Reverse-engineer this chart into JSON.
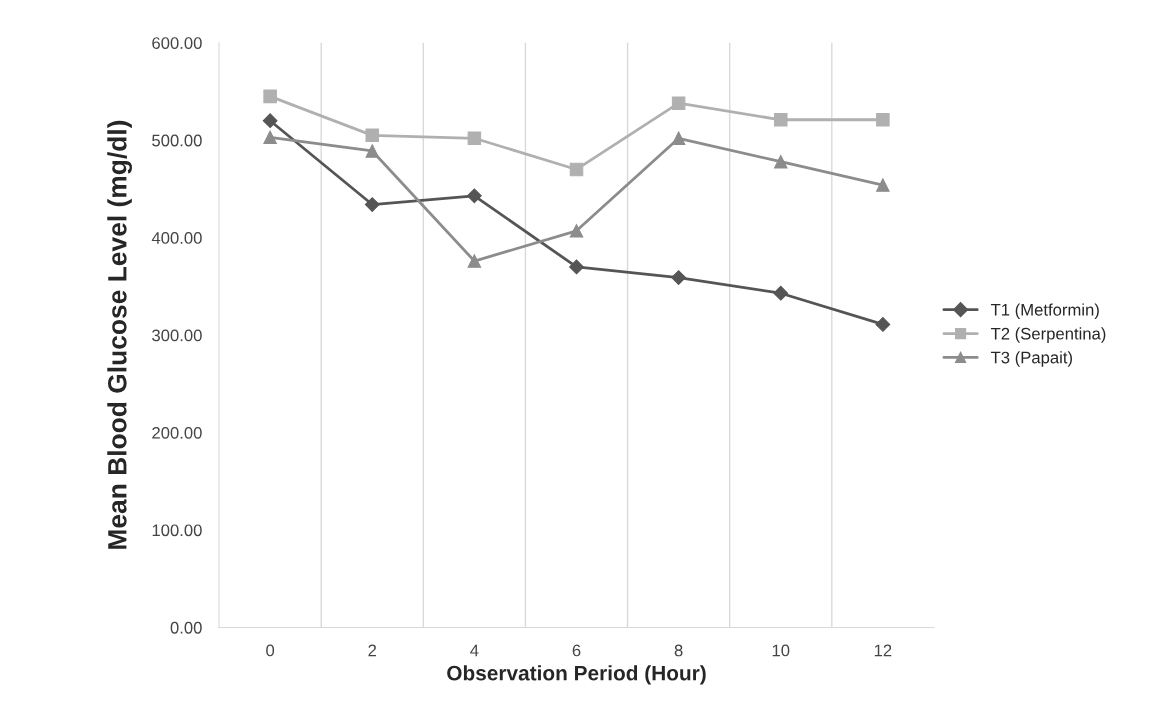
{
  "chart_data": {
    "type": "line",
    "xlabel": "Observation Period (Hour)",
    "ylabel": "Mean Blood Glucose Level (mg/dl)",
    "categories": [
      "0",
      "2",
      "4",
      "6",
      "8",
      "10",
      "12"
    ],
    "series": [
      {
        "name": "T1 (Metformin)",
        "color": "#555555",
        "marker": "diamond",
        "values": [
          520,
          434,
          443,
          370,
          359,
          343,
          311
        ]
      },
      {
        "name": "T2 (Serpentina)",
        "color": "#b0b0b0",
        "marker": "square",
        "values": [
          545,
          505,
          502,
          470,
          538,
          521,
          521
        ]
      },
      {
        "name": "T3 (Papait)",
        "color": "#8c8c8c",
        "marker": "triangle",
        "values": [
          503,
          489,
          376,
          407,
          502,
          478,
          454
        ]
      }
    ],
    "ylim": [
      0,
      600
    ],
    "yticks": [
      {
        "value": 0,
        "label": "0.00"
      },
      {
        "value": 100,
        "label": "100.00"
      },
      {
        "value": 200,
        "label": "200.00"
      },
      {
        "value": 300,
        "label": "300.00"
      },
      {
        "value": 400,
        "label": "400.00"
      },
      {
        "value": 500,
        "label": "500.00"
      },
      {
        "value": 600,
        "label": "600.00"
      }
    ],
    "grid": "x",
    "legend": "right",
    "line_style": "solid"
  }
}
